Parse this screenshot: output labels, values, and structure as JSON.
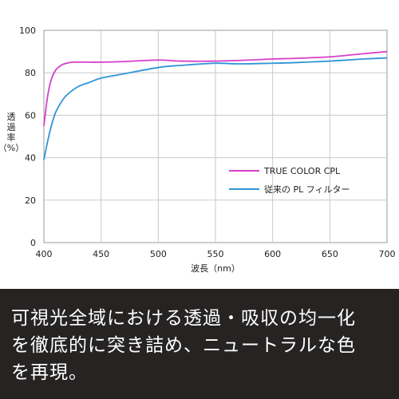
{
  "chart_data": {
    "type": "line",
    "xlabel": "波長（nm）",
    "ylabel": "透過率（%）",
    "xlim": [
      400,
      700
    ],
    "ylim": [
      0,
      100
    ],
    "xticks": [
      400,
      450,
      500,
      550,
      600,
      650,
      700
    ],
    "yticks": [
      0,
      20,
      40,
      60,
      80,
      100
    ],
    "grid": true,
    "legend_position": "lower-right",
    "series": [
      {
        "name": "TRUE COLOR CPL",
        "color": "#d63fc9",
        "x": [
          400,
          403,
          406,
          410,
          415,
          420,
          425,
          430,
          440,
          450,
          470,
          500,
          520,
          550,
          580,
          600,
          620,
          650,
          670,
          690,
          700
        ],
        "y": [
          55,
          68,
          76,
          81,
          83.5,
          84.5,
          85,
          85,
          85,
          85,
          85.3,
          86,
          85.5,
          85.5,
          86,
          86.5,
          86.8,
          87.5,
          88.5,
          89.5,
          90
        ]
      },
      {
        "name": "従来の PL フィルター",
        "color": "#2f95d6",
        "x": [
          400,
          403,
          406,
          410,
          415,
          420,
          430,
          440,
          450,
          470,
          500,
          520,
          550,
          570,
          600,
          620,
          650,
          680,
          700
        ],
        "y": [
          39,
          47,
          54,
          61,
          66,
          69.5,
          73.5,
          75.5,
          77.5,
          79.5,
          82.5,
          83.5,
          84.5,
          84.2,
          84.5,
          84.8,
          85.5,
          86.5,
          87
        ]
      }
    ]
  },
  "caption": {
    "lines": [
      "可視光全域における透過・吸収の均一化",
      "を徹底的に突き詰め、ニュートラルな色",
      "を再現。"
    ]
  }
}
